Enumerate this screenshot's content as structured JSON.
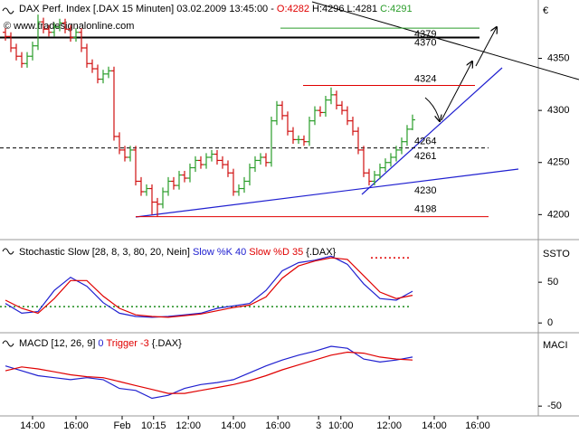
{
  "chart_data": [
    {
      "type": "ohlc",
      "title": "DAX Perf. Index [.DAX  15 Minuten] 03.02.2009 13:45:00 -",
      "quote": [
        {
          "text": "O:4282",
          "color": "#e00000"
        },
        {
          "text": "H:4296 L:4281",
          "color": "#000000"
        },
        {
          "text": "C:4291",
          "color": "#2a9d2a"
        }
      ],
      "watermark": "© www.tradesignalonline.com",
      "axis_label": "€",
      "up_color": "#2a9d2a",
      "down_color": "#d01010",
      "xlim": [
        -1,
        98.17
      ],
      "ylim": [
        4176,
        4406
      ],
      "yticks": [
        4200,
        4250,
        4300,
        4350
      ],
      "open": [
        4375,
        4371,
        4360,
        4352,
        4345,
        4352,
        4362,
        4385,
        4378,
        4375,
        4380,
        4384,
        4378,
        4370,
        4375,
        4360,
        4345,
        4340,
        4330,
        4335,
        4338,
        4275,
        4262,
        4255,
        4262,
        4232,
        4222,
        4225,
        4212,
        4210,
        4222,
        4232,
        4228,
        4238,
        4235,
        4245,
        4252,
        4248,
        4255,
        4258,
        4252,
        4248,
        4240,
        4222,
        4225,
        4232,
        4245,
        4252,
        4255,
        4250,
        4290,
        4305,
        4295,
        4280,
        4272,
        4272,
        4270,
        4290,
        4300,
        4298,
        4310,
        4315,
        4305,
        4300,
        4290,
        4280,
        4262,
        4240,
        4232,
        4238,
        4245,
        4250,
        4255,
        4262,
        4270,
        4282
      ],
      "high": [
        4379,
        4375,
        4364,
        4356,
        4356,
        4366,
        4392,
        4389,
        4382,
        4384,
        4388,
        4388,
        4382,
        4379,
        4379,
        4364,
        4349,
        4344,
        4339,
        4342,
        4342,
        4279,
        4266,
        4266,
        4266,
        4236,
        4229,
        4229,
        4216,
        4226,
        4236,
        4236,
        4242,
        4242,
        4249,
        4256,
        4256,
        4259,
        4262,
        4262,
        4256,
        4252,
        4244,
        4229,
        4236,
        4249,
        4256,
        4259,
        4259,
        4294,
        4309,
        4309,
        4299,
        4284,
        4276,
        4276,
        4294,
        4304,
        4304,
        4314,
        4322,
        4319,
        4309,
        4304,
        4294,
        4284,
        4266,
        4244,
        4242,
        4249,
        4254,
        4259,
        4266,
        4274,
        4286,
        4296
      ],
      "low": [
        4367,
        4356,
        4348,
        4341,
        4341,
        4348,
        4358,
        4374,
        4371,
        4371,
        4376,
        4374,
        4366,
        4366,
        4356,
        4341,
        4336,
        4326,
        4326,
        4331,
        4271,
        4258,
        4251,
        4251,
        4228,
        4218,
        4218,
        4200,
        4198,
        4206,
        4218,
        4224,
        4224,
        4231,
        4231,
        4241,
        4244,
        4244,
        4251,
        4248,
        4244,
        4236,
        4218,
        4218,
        4221,
        4228,
        4241,
        4248,
        4246,
        4246,
        4286,
        4291,
        4276,
        4268,
        4268,
        4266,
        4266,
        4286,
        4294,
        4294,
        4306,
        4301,
        4296,
        4286,
        4276,
        4258,
        4236,
        4228,
        4228,
        4234,
        4241,
        4246,
        4251,
        4258,
        4266,
        4281
      ],
      "close": [
        4371,
        4360,
        4352,
        4345,
        4352,
        4362,
        4385,
        4378,
        4375,
        4380,
        4384,
        4378,
        4370,
        4375,
        4360,
        4345,
        4340,
        4330,
        4335,
        4338,
        4275,
        4262,
        4255,
        4262,
        4232,
        4222,
        4225,
        4212,
        4210,
        4222,
        4232,
        4228,
        4238,
        4235,
        4245,
        4252,
        4248,
        4255,
        4258,
        4252,
        4248,
        4240,
        4222,
        4225,
        4232,
        4245,
        4252,
        4255,
        4250,
        4290,
        4305,
        4295,
        4280,
        4272,
        4272,
        4270,
        4290,
        4300,
        4298,
        4310,
        4315,
        4305,
        4300,
        4290,
        4280,
        4262,
        4240,
        4232,
        4238,
        4245,
        4250,
        4255,
        4262,
        4270,
        4282,
        4291
      ],
      "levels": [
        {
          "value": 4379,
          "color": "#2a9d2a"
        },
        {
          "value": 4370,
          "color": "#000000"
        },
        {
          "value": 4324,
          "color": "#e00000"
        },
        {
          "value": 4264,
          "color": "#000000"
        },
        {
          "value": 4198,
          "color": "#e00000"
        }
      ],
      "trendlines": [
        {
          "value": 4261,
          "color": "#2020d0"
        },
        {
          "value": 4230,
          "color": "#2020d0"
        }
      ]
    },
    {
      "type": "line",
      "title": "Stochastic Slow [28, 8, 3, 80, 20, Nein]",
      "subtitle": "{.DAX}",
      "axis_label": "SSTO",
      "xlim": [
        -1,
        98.17
      ],
      "ylim": [
        -12,
        99
      ],
      "yticks": [
        0,
        50
      ],
      "x": [
        0,
        3,
        6,
        9,
        12,
        15,
        18,
        21,
        24,
        27,
        30,
        33,
        36,
        39,
        42,
        45,
        48,
        51,
        54,
        57,
        60,
        63,
        66,
        69,
        72,
        75
      ],
      "series": [
        {
          "name": "Slow %K 40",
          "color": "#2020d0",
          "values": [
            24,
            12,
            14,
            40,
            56,
            45,
            25,
            12,
            8,
            7,
            8,
            10,
            12,
            18,
            21,
            24,
            40,
            64,
            74,
            77,
            82,
            72,
            48,
            30,
            28,
            39
          ]
        },
        {
          "name": "Slow %D 35",
          "color": "#e00000",
          "values": [
            28,
            18,
            12,
            30,
            52,
            52,
            33,
            18,
            10,
            8,
            7,
            9,
            11,
            15,
            19,
            22,
            32,
            55,
            70,
            76,
            80,
            78,
            58,
            38,
            30,
            34
          ]
        }
      ],
      "hlines": [
        {
          "value": 20,
          "color": "#1a8a1a"
        },
        {
          "value": 80,
          "color": "#e00000"
        }
      ]
    },
    {
      "type": "line",
      "title": "MACD [12, 26, 9]",
      "subtitle": "{.DAX}",
      "axis_label": "MACI",
      "xlim": [
        -1,
        98.17
      ],
      "ylim": [
        -60,
        23
      ],
      "yticks": [
        -50
      ],
      "x": [
        0,
        3,
        6,
        9,
        12,
        15,
        18,
        21,
        24,
        27,
        30,
        33,
        36,
        39,
        42,
        45,
        48,
        51,
        54,
        57,
        60,
        63,
        66,
        69,
        72,
        75
      ],
      "series": [
        {
          "name": "0",
          "color": "#2020d0",
          "values": [
            -9,
            -14,
            -19,
            -21,
            -23,
            -21,
            -23,
            -32,
            -34,
            -42,
            -39,
            -32,
            -28,
            -26,
            -23,
            -16,
            -9,
            -3,
            2,
            6,
            11,
            9,
            -2,
            -5,
            -3,
            0
          ]
        },
        {
          "name": "Trigger -3",
          "color": "#e00000",
          "values": [
            -14,
            -10,
            -12,
            -15,
            -18,
            -20,
            -21,
            -25,
            -29,
            -33,
            -37,
            -37,
            -34,
            -31,
            -28,
            -24,
            -19,
            -13,
            -8,
            -3,
            2,
            5,
            4,
            0,
            -2,
            -3
          ]
        }
      ],
      "xticks": [
        {
          "value": 5,
          "label": "14:00"
        },
        {
          "value": 13,
          "label": "16:00"
        },
        {
          "value": 21.5,
          "label": "Feb"
        },
        {
          "value": 27.3,
          "label": "10:15"
        },
        {
          "value": 33.7,
          "label": "12:00"
        },
        {
          "value": 42,
          "label": "14:00"
        },
        {
          "value": 50.2,
          "label": "16:00"
        },
        {
          "value": 57.7,
          "label": "3"
        },
        {
          "value": 61.8,
          "label": "10:00"
        },
        {
          "value": 70.7,
          "label": "12:00"
        },
        {
          "value": 79,
          "label": "14:00"
        },
        {
          "value": 87,
          "label": "16:00"
        }
      ]
    }
  ]
}
